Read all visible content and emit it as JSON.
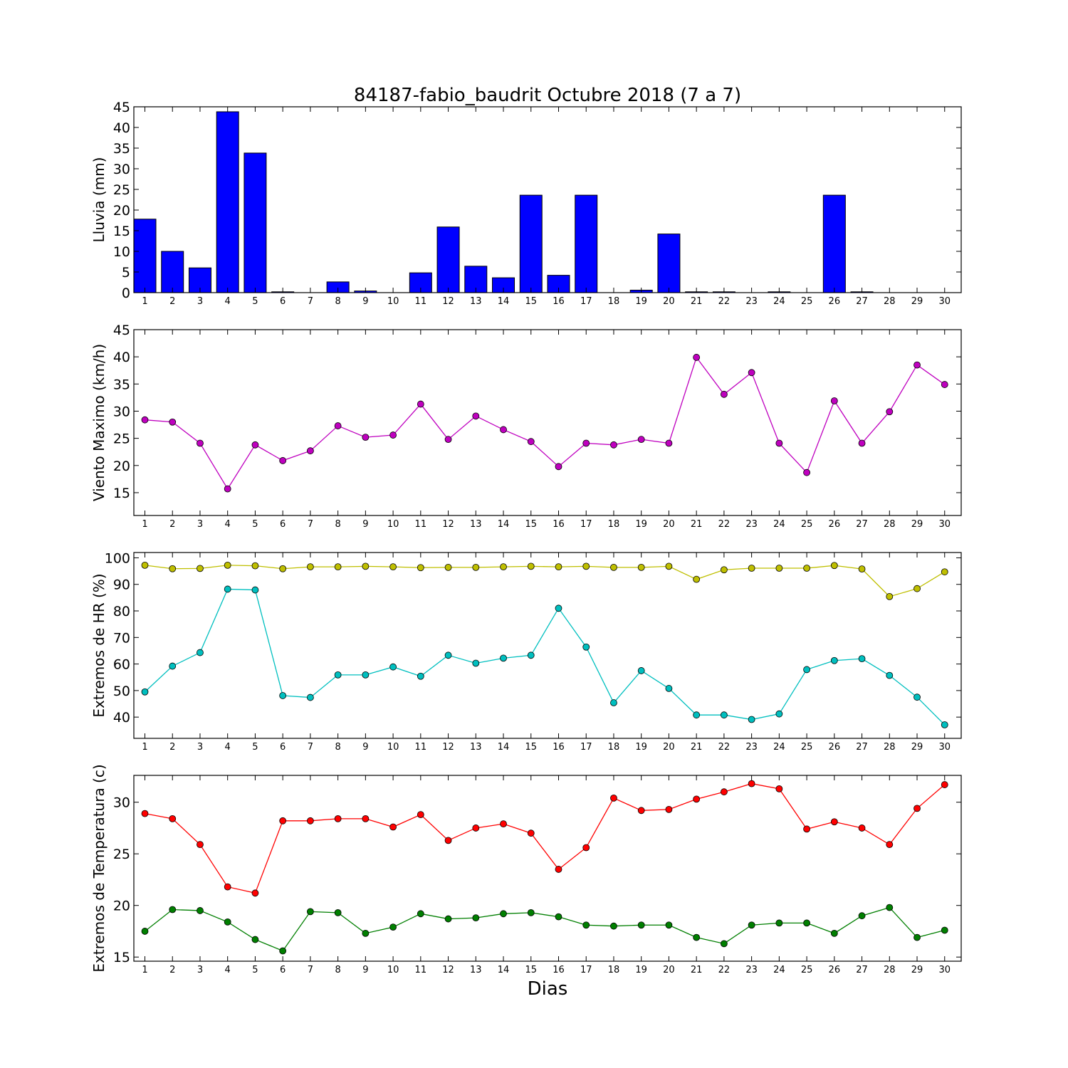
{
  "figure": {
    "title": "84187-fabio_baudrit Octubre 2018  (7 a 7)",
    "xlabel": "Dias"
  },
  "chart_data": [
    {
      "type": "bar",
      "ylabel": "Lluvia (mm)",
      "ylim": [
        0,
        45
      ],
      "yticks": [
        0,
        5,
        10,
        15,
        20,
        25,
        30,
        35,
        40,
        45
      ],
      "xlim": [
        0.6,
        30.6
      ],
      "categories": [
        1,
        2,
        3,
        4,
        5,
        6,
        7,
        8,
        9,
        10,
        11,
        12,
        13,
        14,
        15,
        16,
        17,
        18,
        19,
        20,
        21,
        22,
        23,
        24,
        25,
        26,
        27,
        28,
        29,
        30
      ],
      "series": [
        {
          "color": "#0000ff",
          "values": [
            17.8,
            10.0,
            6.0,
            43.8,
            33.8,
            0.2,
            0,
            2.6,
            0.4,
            0,
            4.8,
            15.9,
            6.4,
            3.6,
            23.6,
            4.2,
            23.6,
            0,
            0.6,
            14.2,
            0.2,
            0.2,
            0,
            0.2,
            0,
            23.6,
            0.2,
            0,
            0,
            0
          ]
        }
      ]
    },
    {
      "type": "line",
      "ylabel": "Viento Maximo (km/h)",
      "ylim": [
        10.8,
        45
      ],
      "yticks": [
        15,
        20,
        25,
        30,
        35,
        40,
        45
      ],
      "xlim": [
        0.6,
        30.6
      ],
      "x": [
        1,
        2,
        3,
        4,
        5,
        6,
        7,
        8,
        9,
        10,
        11,
        12,
        13,
        14,
        15,
        16,
        17,
        18,
        19,
        20,
        21,
        22,
        23,
        24,
        25,
        26,
        27,
        28,
        29,
        30
      ],
      "series": [
        {
          "color": "#bf00bf",
          "values": [
            28.4,
            28.0,
            24.1,
            15.7,
            23.8,
            20.9,
            22.7,
            27.3,
            25.2,
            25.6,
            31.3,
            24.8,
            29.1,
            26.6,
            24.4,
            19.8,
            24.1,
            23.8,
            24.8,
            24.1,
            39.9,
            33.1,
            37.1,
            24.1,
            18.7,
            31.9,
            24.1,
            29.9,
            38.5,
            34.9
          ]
        }
      ]
    },
    {
      "type": "line",
      "ylabel": "Extremos de HR (%)",
      "ylim": [
        32,
        102
      ],
      "yticks": [
        40,
        50,
        60,
        70,
        80,
        90,
        100
      ],
      "xlim": [
        0.6,
        30.6
      ],
      "x": [
        1,
        2,
        3,
        4,
        5,
        6,
        7,
        8,
        9,
        10,
        11,
        12,
        13,
        14,
        15,
        16,
        17,
        18,
        19,
        20,
        21,
        22,
        23,
        24,
        25,
        26,
        27,
        28,
        29,
        30
      ],
      "series": [
        {
          "color": "#bfbf00",
          "values": [
            97.2,
            95.9,
            96.0,
            97.2,
            97.0,
            95.9,
            96.6,
            96.6,
            96.8,
            96.6,
            96.3,
            96.4,
            96.4,
            96.6,
            96.8,
            96.6,
            96.8,
            96.4,
            96.4,
            96.8,
            91.9,
            95.5,
            96.1,
            96.1,
            96.1,
            97.1,
            95.8,
            85.4,
            88.4,
            94.7
          ]
        },
        {
          "color": "#00bfbf",
          "values": [
            49.5,
            59.2,
            64.3,
            88.2,
            87.9,
            48.1,
            47.4,
            55.9,
            55.9,
            58.9,
            55.4,
            63.3,
            60.3,
            62.2,
            63.3,
            81.0,
            66.4,
            45.4,
            57.5,
            50.8,
            40.8,
            40.8,
            39.1,
            41.2,
            57.9,
            61.3,
            62.0,
            55.7,
            47.5,
            37.1
          ]
        }
      ]
    },
    {
      "type": "line",
      "ylabel": "Extremos de Temperatura (c)",
      "ylim": [
        14.6,
        32.6
      ],
      "yticks": [
        15,
        20,
        25,
        30
      ],
      "xlim": [
        0.6,
        30.6
      ],
      "x": [
        1,
        2,
        3,
        4,
        5,
        6,
        7,
        8,
        9,
        10,
        11,
        12,
        13,
        14,
        15,
        16,
        17,
        18,
        19,
        20,
        21,
        22,
        23,
        24,
        25,
        26,
        27,
        28,
        29,
        30
      ],
      "series": [
        {
          "color": "#ff0000",
          "values": [
            28.9,
            28.4,
            25.9,
            21.8,
            21.2,
            28.2,
            28.2,
            28.4,
            28.4,
            27.6,
            28.8,
            26.3,
            27.5,
            27.9,
            27.0,
            23.5,
            25.6,
            30.4,
            29.2,
            29.3,
            30.3,
            31.0,
            31.8,
            31.3,
            27.4,
            28.1,
            27.5,
            25.9,
            29.4,
            31.7
          ]
        },
        {
          "color": "#007f00",
          "values": [
            17.5,
            19.6,
            19.5,
            18.4,
            16.7,
            15.6,
            19.4,
            19.3,
            17.3,
            17.9,
            19.2,
            18.7,
            18.8,
            19.2,
            19.3,
            18.9,
            18.1,
            18.0,
            18.1,
            18.1,
            16.9,
            16.3,
            18.1,
            18.3,
            18.3,
            17.3,
            19.0,
            19.8,
            16.9,
            17.6
          ]
        }
      ]
    }
  ]
}
